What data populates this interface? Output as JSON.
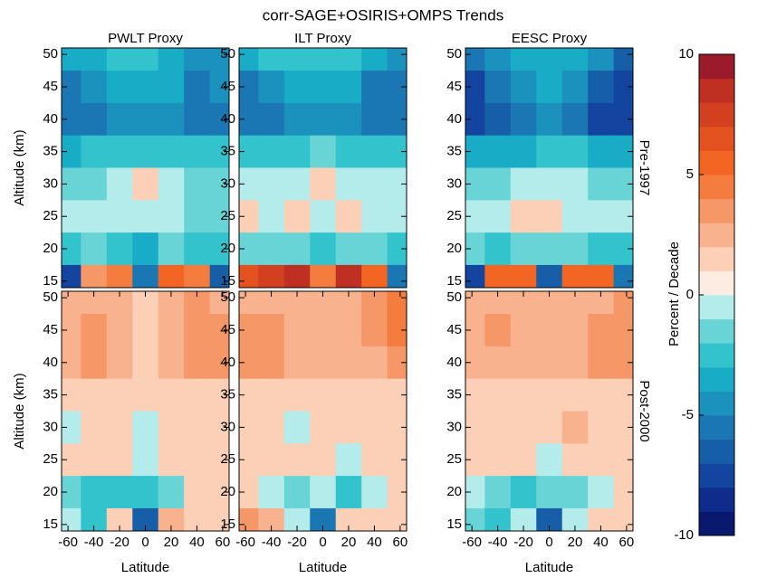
{
  "title": "corr-SAGE+OSIRIS+OMPS Trends",
  "colorbar": {
    "label": "Percent / Decade",
    "clim": [
      -10,
      10
    ],
    "ticks": [
      -10,
      -5,
      0,
      5,
      10
    ],
    "colors": [
      "#08196e",
      "#0d2c8c",
      "#13449f",
      "#175ea9",
      "#1a77b3",
      "#1a92bd",
      "#19acc6",
      "#33c3cc",
      "#69d4d6",
      "#b4ecec",
      "#fdece2",
      "#fbd0b6",
      "#f8b38e",
      "#f59766",
      "#f47c3e",
      "#f26522",
      "#e4521f",
      "#d2401f",
      "#bf2f22",
      "#9b1b2a"
    ]
  },
  "chart_data": [
    {
      "type": "heatmap",
      "title": "PWLT Proxy",
      "ylabel": "Altitude (km)",
      "x": [
        -60,
        -40,
        -20,
        0,
        20,
        40,
        60
      ],
      "y": [
        50,
        45,
        40,
        35,
        30,
        25,
        20,
        15
      ],
      "values": [
        [
          -4,
          -4,
          -3,
          -3,
          -4,
          -5,
          -5
        ],
        [
          -6,
          -5,
          -4,
          -4,
          -4,
          -6,
          -5
        ],
        [
          -6,
          -6,
          -5,
          -5,
          -5,
          -6,
          -6
        ],
        [
          -4,
          -3,
          -3,
          -3,
          -3,
          -3,
          -3
        ],
        [
          -2,
          -2,
          -1,
          1,
          -1,
          -2,
          -2
        ],
        [
          -1,
          -1,
          -1,
          -1,
          -1,
          -2,
          -2
        ],
        [
          -3,
          -2,
          -3,
          -4,
          -2,
          -3,
          -3
        ],
        [
          -8,
          3,
          4,
          -6,
          5,
          4,
          -7
        ]
      ],
      "xlim": [
        -65,
        65
      ],
      "ylim": [
        14,
        51
      ],
      "yticks": [
        15,
        20,
        25,
        30,
        35,
        40,
        45,
        50
      ]
    },
    {
      "type": "heatmap",
      "title": "ILT Proxy",
      "x": [
        -60,
        -40,
        -20,
        0,
        20,
        40,
        60
      ],
      "y": [
        50,
        45,
        40,
        35,
        30,
        25,
        20,
        15
      ],
      "values": [
        [
          -4,
          -3,
          -3,
          -3,
          -3,
          -4,
          -5
        ],
        [
          -6,
          -5,
          -4,
          -4,
          -4,
          -6,
          -6
        ],
        [
          -6,
          -6,
          -5,
          -5,
          -5,
          -6,
          -6
        ],
        [
          -3,
          -3,
          -3,
          -2,
          -3,
          -3,
          -3
        ],
        [
          -1,
          -1,
          -1,
          1,
          -1,
          -1,
          -1
        ],
        [
          1,
          -1,
          1,
          -1,
          1,
          -1,
          -1
        ],
        [
          -2,
          -2,
          -2,
          -3,
          -2,
          -2,
          -3
        ],
        [
          6,
          7,
          8,
          4,
          8,
          5,
          -6
        ]
      ],
      "xlim": [
        -65,
        65
      ],
      "ylim": [
        14,
        51
      ],
      "yticks": [
        15,
        20,
        25,
        30,
        35,
        40,
        45,
        50
      ]
    },
    {
      "type": "heatmap",
      "title": "EESC Proxy",
      "row_label": "Pre-1997",
      "x": [
        -60,
        -40,
        -20,
        0,
        20,
        40,
        60
      ],
      "y": [
        50,
        45,
        40,
        35,
        30,
        25,
        20,
        15
      ],
      "values": [
        [
          -6,
          -5,
          -4,
          -4,
          -4,
          -5,
          -7
        ],
        [
          -8,
          -6,
          -5,
          -4,
          -5,
          -7,
          -8
        ],
        [
          -8,
          -7,
          -6,
          -5,
          -6,
          -8,
          -8
        ],
        [
          -4,
          -4,
          -4,
          -3,
          -3,
          -4,
          -4
        ],
        [
          -2,
          -2,
          -1,
          -1,
          -1,
          -2,
          -2
        ],
        [
          -1,
          -1,
          1,
          1,
          -1,
          -1,
          -1
        ],
        [
          -2,
          -3,
          -2,
          -2,
          -2,
          -3,
          -3
        ],
        [
          -8,
          5,
          5,
          -7,
          5,
          5,
          -6
        ]
      ],
      "xlim": [
        -65,
        65
      ],
      "ylim": [
        14,
        51
      ],
      "yticks": [
        15,
        20,
        25,
        30,
        35,
        40,
        45,
        50
      ]
    },
    {
      "type": "heatmap",
      "ylabel": "Altitude (km)",
      "xlabel": "Latitude",
      "x": [
        -60,
        -40,
        -20,
        0,
        20,
        40,
        60
      ],
      "y": [
        50,
        45,
        40,
        35,
        30,
        25,
        20,
        15
      ],
      "values": [
        [
          2,
          2,
          2,
          1,
          2,
          3,
          2
        ],
        [
          2,
          3,
          2,
          1,
          2,
          3,
          3
        ],
        [
          2,
          3,
          2,
          1,
          2,
          3,
          3
        ],
        [
          1,
          1,
          1,
          1,
          1,
          1,
          1
        ],
        [
          -1,
          1,
          1,
          -1,
          1,
          1,
          1
        ],
        [
          1,
          1,
          1,
          -1,
          1,
          1,
          1
        ],
        [
          -2,
          -3,
          -3,
          -3,
          -2,
          1,
          1
        ],
        [
          -1,
          -3,
          1,
          -7,
          2,
          1,
          1
        ]
      ],
      "xlim": [
        -65,
        65
      ],
      "ylim": [
        14,
        51
      ],
      "xticks": [
        -60,
        -40,
        -20,
        0,
        20,
        40,
        60
      ],
      "yticks": [
        15,
        20,
        25,
        30,
        35,
        40,
        45,
        50
      ]
    },
    {
      "type": "heatmap",
      "xlabel": "Latitude",
      "x": [
        -60,
        -40,
        -20,
        0,
        20,
        40,
        60
      ],
      "y": [
        50,
        45,
        40,
        35,
        30,
        25,
        20,
        15
      ],
      "values": [
        [
          2,
          2,
          2,
          2,
          2,
          3,
          4
        ],
        [
          3,
          3,
          2,
          2,
          2,
          3,
          4
        ],
        [
          3,
          3,
          2,
          2,
          2,
          2,
          3
        ],
        [
          1,
          1,
          1,
          1,
          1,
          1,
          1
        ],
        [
          1,
          1,
          -1,
          1,
          1,
          1,
          1
        ],
        [
          1,
          1,
          1,
          1,
          -1,
          1,
          1
        ],
        [
          1,
          -1,
          -2,
          -1,
          -3,
          -1,
          1
        ],
        [
          3,
          2,
          -1,
          -6,
          1,
          1,
          1
        ]
      ],
      "xlim": [
        -65,
        65
      ],
      "ylim": [
        14,
        51
      ],
      "xticks": [
        -60,
        -40,
        -20,
        0,
        20,
        40,
        60
      ],
      "yticks": [
        15,
        20,
        25,
        30,
        35,
        40,
        45,
        50
      ]
    },
    {
      "type": "heatmap",
      "row_label": "Post-2000",
      "xlabel": "Latitude",
      "x": [
        -60,
        -40,
        -20,
        0,
        20,
        40,
        60
      ],
      "y": [
        50,
        45,
        40,
        35,
        30,
        25,
        20,
        15
      ],
      "values": [
        [
          2,
          2,
          2,
          2,
          2,
          2,
          3
        ],
        [
          2,
          3,
          2,
          2,
          2,
          3,
          3
        ],
        [
          2,
          2,
          2,
          2,
          2,
          3,
          3
        ],
        [
          1,
          1,
          1,
          1,
          1,
          1,
          1
        ],
        [
          1,
          1,
          1,
          1,
          2,
          1,
          1
        ],
        [
          1,
          1,
          1,
          -1,
          1,
          1,
          1
        ],
        [
          -1,
          -2,
          -3,
          -2,
          -2,
          -1,
          1
        ],
        [
          -2,
          -3,
          -1,
          -7,
          -1,
          1,
          1
        ]
      ],
      "xlim": [
        -65,
        65
      ],
      "ylim": [
        14,
        51
      ],
      "xticks": [
        -60,
        -40,
        -20,
        0,
        20,
        40,
        60
      ],
      "yticks": [
        15,
        20,
        25,
        30,
        35,
        40,
        45,
        50
      ]
    }
  ]
}
